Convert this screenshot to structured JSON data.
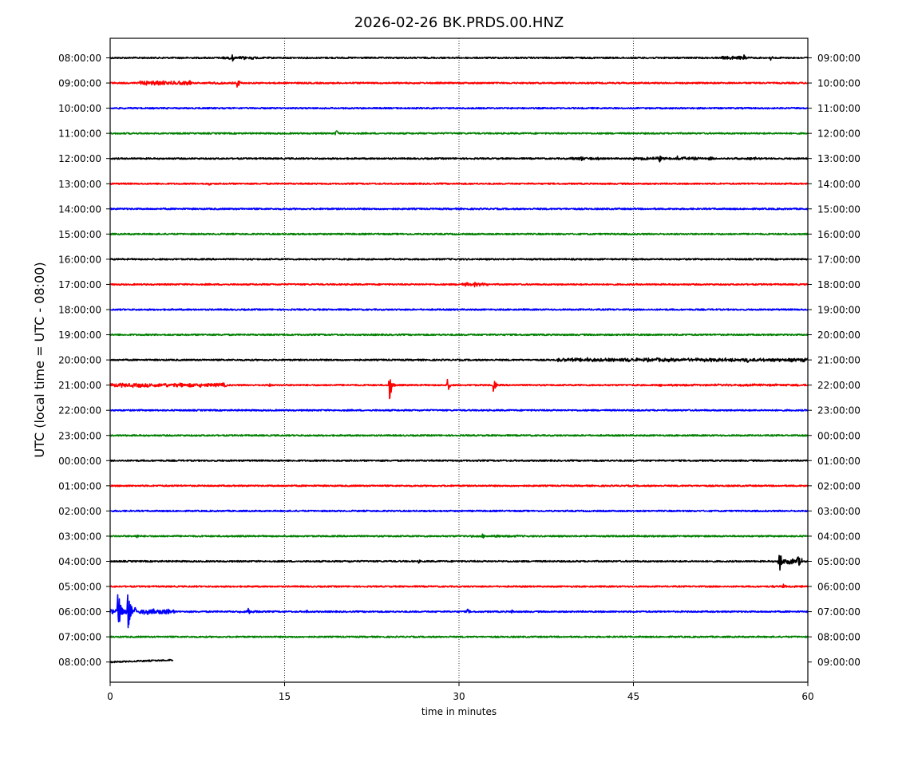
{
  "chart_data": {
    "type": "line",
    "title": "2026-02-26 BK.PRDS.00.HNZ",
    "xlabel": "time in minutes",
    "ylabel": "UTC (local time = UTC - 08:00)",
    "xlim": [
      0,
      60
    ],
    "x_ticks": [
      0,
      15,
      30,
      45,
      60
    ],
    "grid": "vertical dotted lines at 15, 30, 45",
    "series_colors": [
      "#000000",
      "#ff0000",
      "#0000ff",
      "#008000"
    ],
    "rows": [
      {
        "left": "08:00:00",
        "right": "09:00:00",
        "color": "#000000",
        "events": [
          {
            "t": 10.5,
            "a": 5
          },
          {
            "t": 11.5,
            "a": 3
          },
          {
            "t": 54.5,
            "a": 4
          },
          {
            "t": 56.8,
            "a": 5
          }
        ],
        "busy": [
          [
            9.5,
            13,
            2
          ],
          [
            52.5,
            55,
            2.5
          ],
          [
            57,
            60,
            1
          ]
        ]
      },
      {
        "left": "09:00:00",
        "right": "10:00:00",
        "color": "#ff0000",
        "events": [
          {
            "t": 3.8,
            "a": 4
          },
          {
            "t": 6.3,
            "a": 4
          },
          {
            "t": 10.9,
            "a": 9
          }
        ],
        "busy": [
          [
            2.5,
            7,
            3
          ],
          [
            8.5,
            11,
            1.5
          ]
        ]
      },
      {
        "left": "10:00:00",
        "right": "11:00:00",
        "color": "#0000ff",
        "events": [],
        "busy": []
      },
      {
        "left": "11:00:00",
        "right": "12:00:00",
        "color": "#008000",
        "events": [
          {
            "t": 19.4,
            "a": 7
          }
        ],
        "busy": []
      },
      {
        "left": "12:00:00",
        "right": "13:00:00",
        "color": "#000000",
        "events": [
          {
            "t": 40.5,
            "a": 4
          },
          {
            "t": 47.2,
            "a": 6
          },
          {
            "t": 48.7,
            "a": 5
          },
          {
            "t": 55.4,
            "a": 3
          }
        ],
        "busy": [
          [
            39.5,
            42,
            2
          ],
          [
            45,
            52,
            2
          ],
          [
            53,
            56,
            1.5
          ]
        ]
      },
      {
        "left": "13:00:00",
        "right": "14:00:00",
        "color": "#ff0000",
        "events": [
          {
            "t": 8.5,
            "a": 3
          }
        ],
        "busy": []
      },
      {
        "left": "14:00:00",
        "right": "15:00:00",
        "color": "#0000ff",
        "events": [],
        "busy": []
      },
      {
        "left": "15:00:00",
        "right": "16:00:00",
        "color": "#008000",
        "events": [],
        "busy": []
      },
      {
        "left": "16:00:00",
        "right": "17:00:00",
        "color": "#000000",
        "events": [],
        "busy": []
      },
      {
        "left": "17:00:00",
        "right": "18:00:00",
        "color": "#ff0000",
        "events": [
          {
            "t": 31.3,
            "a": 4
          }
        ],
        "busy": [
          [
            30.2,
            32.5,
            2.5
          ]
        ]
      },
      {
        "left": "18:00:00",
        "right": "19:00:00",
        "color": "#0000ff",
        "events": [],
        "busy": []
      },
      {
        "left": "19:00:00",
        "right": "20:00:00",
        "color": "#008000",
        "events": [],
        "busy": []
      },
      {
        "left": "20:00:00",
        "right": "21:00:00",
        "color": "#000000",
        "events": [
          {
            "t": 41,
            "a": 4
          },
          {
            "t": 44.5,
            "a": 5
          },
          {
            "t": 47,
            "a": 3
          },
          {
            "t": 54.8,
            "a": 4
          },
          {
            "t": 59.5,
            "a": 4
          }
        ],
        "busy": [
          [
            38.5,
            60,
            2.5
          ]
        ]
      },
      {
        "left": "21:00:00",
        "right": "22:00:00",
        "color": "#ff0000",
        "events": [
          {
            "t": 24,
            "a": 24
          },
          {
            "t": 29,
            "a": 10
          },
          {
            "t": 32.9,
            "a": 13
          },
          {
            "t": 13.6,
            "a": 4
          },
          {
            "t": 2.5,
            "a": 4
          }
        ],
        "busy": [
          [
            0,
            10,
            3
          ],
          [
            47,
            60,
            1.5
          ]
        ]
      },
      {
        "left": "22:00:00",
        "right": "23:00:00",
        "color": "#0000ff",
        "events": [],
        "busy": []
      },
      {
        "left": "23:00:00",
        "right": "00:00:00",
        "color": "#008000",
        "events": [],
        "busy": []
      },
      {
        "left": "00:00:00",
        "right": "01:00:00",
        "color": "#000000",
        "events": [],
        "busy": []
      },
      {
        "left": "01:00:00",
        "right": "02:00:00",
        "color": "#ff0000",
        "events": [],
        "busy": []
      },
      {
        "left": "02:00:00",
        "right": "03:00:00",
        "color": "#0000ff",
        "events": [],
        "busy": []
      },
      {
        "left": "03:00:00",
        "right": "04:00:00",
        "color": "#008000",
        "events": [
          {
            "t": 2.2,
            "a": 5
          },
          {
            "t": 32,
            "a": 4
          },
          {
            "t": 33.2,
            "a": 3
          }
        ],
        "busy": [
          [
            30.5,
            35.5,
            1.5
          ]
        ]
      },
      {
        "left": "04:00:00",
        "right": "05:00:00",
        "color": "#000000",
        "events": [
          {
            "t": 57.5,
            "a": 25
          },
          {
            "t": 59.1,
            "a": 12
          },
          {
            "t": 26.5,
            "a": 3
          },
          {
            "t": 20.5,
            "a": 3
          }
        ],
        "busy": [
          [
            57.5,
            59.5,
            4
          ]
        ]
      },
      {
        "left": "05:00:00",
        "right": "06:00:00",
        "color": "#ff0000",
        "events": [
          {
            "t": 57.9,
            "a": 3
          }
        ],
        "busy": [
          [
            56.5,
            59.5,
            1.5
          ]
        ]
      },
      {
        "left": "06:00:00",
        "right": "07:00:00",
        "color": "#0000ff",
        "events": [
          {
            "t": 0.65,
            "a": 38
          },
          {
            "t": 1.5,
            "a": 46
          },
          {
            "t": 2.1,
            "a": 8
          },
          {
            "t": 4.2,
            "a": 5
          },
          {
            "t": 11.8,
            "a": 7
          },
          {
            "t": 16.8,
            "a": 4
          },
          {
            "t": 30.7,
            "a": 5
          },
          {
            "t": 34.5,
            "a": 4
          }
        ],
        "busy": [
          [
            0,
            5.5,
            4
          ],
          [
            11,
            13,
            2
          ]
        ]
      },
      {
        "left": "07:00:00",
        "right": "08:00:00",
        "color": "#008000",
        "events": [],
        "busy": []
      },
      {
        "left": "08:00:00",
        "right": "09:00:00",
        "color": "#000000",
        "end_minute": 5.4,
        "events": [],
        "busy": []
      }
    ]
  }
}
